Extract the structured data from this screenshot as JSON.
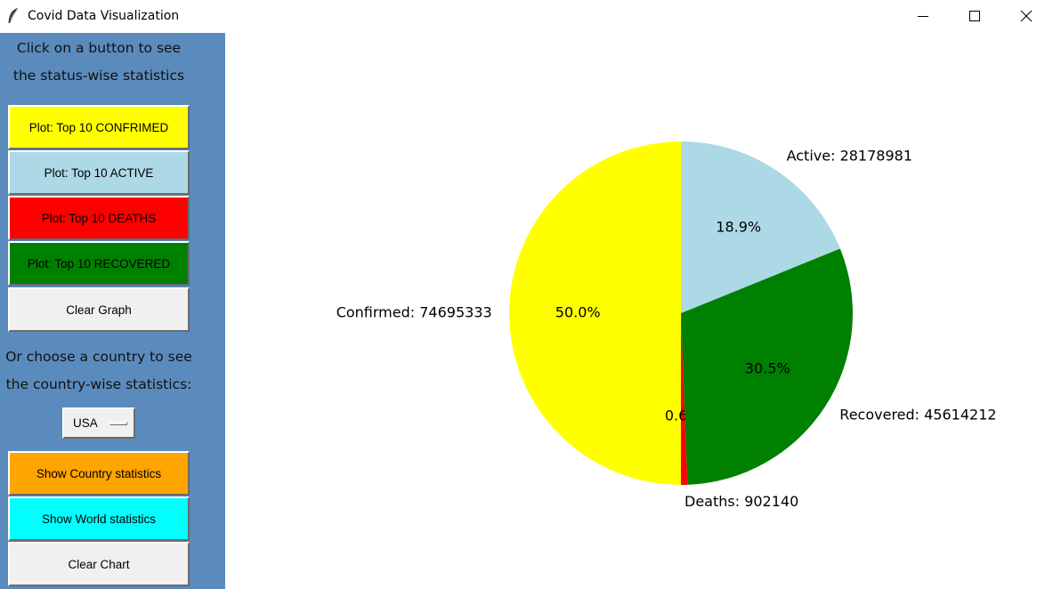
{
  "window": {
    "title": "Covid Data Visualization",
    "icon": "feather-icon",
    "controls": [
      "minimize-icon",
      "maximize-icon",
      "close-icon"
    ]
  },
  "sidebar": {
    "instruction_lines": [
      "Click on a button to see",
      "the status-wise statistics"
    ],
    "status_buttons": [
      {
        "label": "Plot: Top 10 CONFRIMED",
        "bg": "#ffff00",
        "fg": "#000000"
      },
      {
        "label": "Plot: Top 10 ACTIVE",
        "bg": "#add8e6",
        "fg": "#000000"
      },
      {
        "label": "Plot: Top 10 DEATHS",
        "bg": "#ff0000",
        "fg": "#000000"
      },
      {
        "label": "Plot: Top 10 RECOVERED",
        "bg": "#008000",
        "fg": "#000000"
      },
      {
        "label": "Clear Graph",
        "bg": "#f0f0f0",
        "fg": "#000000"
      }
    ],
    "country_lines": [
      "Or choose a country to see",
      "the country-wise statistics:"
    ],
    "country_select": {
      "value": "USA"
    },
    "country_buttons": [
      {
        "label": "Show Country statistics",
        "bg": "#ffa500",
        "fg": "#000000"
      },
      {
        "label": "Show World statistics",
        "bg": "#00ffff",
        "fg": "#000000"
      },
      {
        "label": "Clear Chart",
        "bg": "#f0f0f0",
        "fg": "#000000"
      }
    ]
  },
  "chart_data": {
    "type": "pie",
    "slices": [
      {
        "label": "Confirmed: 74695333",
        "value": 74695333,
        "pct": "50.0%",
        "color": "#ffff00"
      },
      {
        "label": "Deaths: 902140",
        "value": 902140,
        "pct": "0.6%",
        "color": "#ff0000"
      },
      {
        "label": "Recovered: 45614212",
        "value": 45614212,
        "pct": "30.5%",
        "color": "#008000"
      },
      {
        "label": "Active: 28178981",
        "value": 28178981,
        "pct": "18.9%",
        "color": "#add8e6"
      }
    ],
    "start_angle_deg": 90,
    "direction": "counterclockwise"
  }
}
